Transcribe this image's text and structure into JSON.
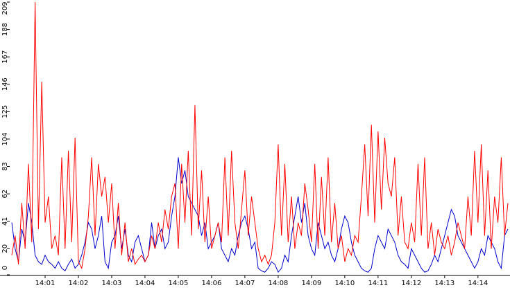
{
  "chart_data": {
    "type": "line",
    "categories": [
      null,
      null,
      null,
      null,
      null,
      null,
      null,
      null,
      null,
      null,
      "14:01",
      null,
      null,
      null,
      null,
      null,
      null,
      null,
      null,
      null,
      "14:02",
      null,
      null,
      null,
      null,
      null,
      null,
      null,
      null,
      null,
      "14:03",
      null,
      null,
      null,
      null,
      null,
      null,
      null,
      null,
      null,
      "14:04",
      null,
      null,
      null,
      null,
      null,
      null,
      null,
      null,
      null,
      "14:05",
      null,
      null,
      null,
      null,
      null,
      null,
      null,
      null,
      null,
      "14:06",
      null,
      null,
      null,
      null,
      null,
      null,
      null,
      null,
      null,
      "14:07",
      null,
      null,
      null,
      null,
      null,
      null,
      null,
      null,
      null,
      "14:08",
      null,
      null,
      null,
      null,
      null,
      null,
      null,
      null,
      null,
      "14:09",
      null,
      null,
      null,
      null,
      null,
      null,
      null,
      null,
      null,
      "14:10",
      null,
      null,
      null,
      null,
      null,
      null,
      null,
      null,
      null,
      "14:11",
      null,
      null,
      null,
      null,
      null,
      null,
      null,
      null,
      null,
      "14:12",
      null,
      null,
      null,
      null,
      null,
      null,
      null,
      null,
      null,
      "14:13",
      null,
      null,
      null,
      null,
      null,
      null,
      null,
      null,
      null,
      "14:14",
      null,
      null,
      null,
      null,
      null,
      null,
      null,
      null,
      null
    ],
    "series": [
      {
        "color": "#ff0000",
        "values": [
          15,
          30,
          8,
          55,
          20,
          85,
          25,
          209,
          35,
          148,
          40,
          60,
          20,
          30,
          15,
          90,
          20,
          95,
          25,
          105,
          10,
          5,
          20,
          45,
          90,
          30,
          85,
          60,
          75,
          40,
          70,
          20,
          55,
          15,
          40,
          10,
          20,
          8,
          12,
          15,
          10,
          15,
          30,
          20,
          40,
          25,
          50,
          35,
          60,
          70,
          20,
          85,
          40,
          95,
          30,
          130,
          35,
          80,
          25,
          60,
          20,
          30,
          40,
          25,
          90,
          30,
          95,
          40,
          20,
          50,
          80,
          30,
          60,
          40,
          20,
          10,
          15,
          8,
          15,
          40,
          100,
          30,
          85,
          25,
          60,
          20,
          40,
          30,
          70,
          50,
          25,
          85,
          20,
          75,
          30,
          90,
          25,
          55,
          20,
          30,
          10,
          20,
          15,
          30,
          25,
          60,
          100,
          45,
          115,
          40,
          110,
          50,
          105,
          70,
          60,
          90,
          30,
          60,
          25,
          20,
          40,
          25,
          85,
          30,
          90,
          20,
          40,
          15,
          35,
          25,
          20,
          30,
          15,
          25,
          40,
          30,
          20,
          60,
          30,
          95,
          40,
          100,
          30,
          80,
          20,
          60,
          40,
          90,
          30,
          55
        ]
      },
      {
        "color": "#0000cc",
        "values": [
          40,
          20,
          10,
          35,
          25,
          55,
          40,
          15,
          10,
          8,
          15,
          10,
          8,
          5,
          10,
          5,
          3,
          8,
          12,
          5,
          8,
          15,
          25,
          40,
          35,
          20,
          30,
          45,
          10,
          5,
          25,
          30,
          45,
          20,
          35,
          15,
          10,
          25,
          30,
          20,
          10,
          15,
          40,
          20,
          30,
          35,
          20,
          25,
          45,
          60,
          90,
          70,
          80,
          60,
          55,
          50,
          45,
          30,
          40,
          20,
          25,
          30,
          40,
          20,
          15,
          10,
          20,
          15,
          30,
          40,
          45,
          35,
          20,
          25,
          5,
          3,
          2,
          5,
          10,
          8,
          2,
          5,
          15,
          10,
          30,
          45,
          60,
          40,
          55,
          30,
          20,
          15,
          40,
          30,
          20,
          25,
          15,
          10,
          20,
          35,
          45,
          40,
          25,
          15,
          10,
          5,
          3,
          2,
          5,
          20,
          30,
          25,
          20,
          35,
          30,
          25,
          15,
          10,
          8,
          5,
          20,
          15,
          10,
          5,
          2,
          3,
          8,
          15,
          10,
          20,
          30,
          40,
          50,
          45,
          30,
          25,
          20,
          15,
          10,
          5,
          10,
          20,
          15,
          30,
          25,
          20,
          10,
          5,
          30,
          35
        ]
      }
    ],
    "ylim": [
      0,
      209
    ],
    "yticks": [
      0,
      20,
      41,
      62,
      83,
      104,
      125,
      146,
      167,
      188,
      209
    ]
  }
}
